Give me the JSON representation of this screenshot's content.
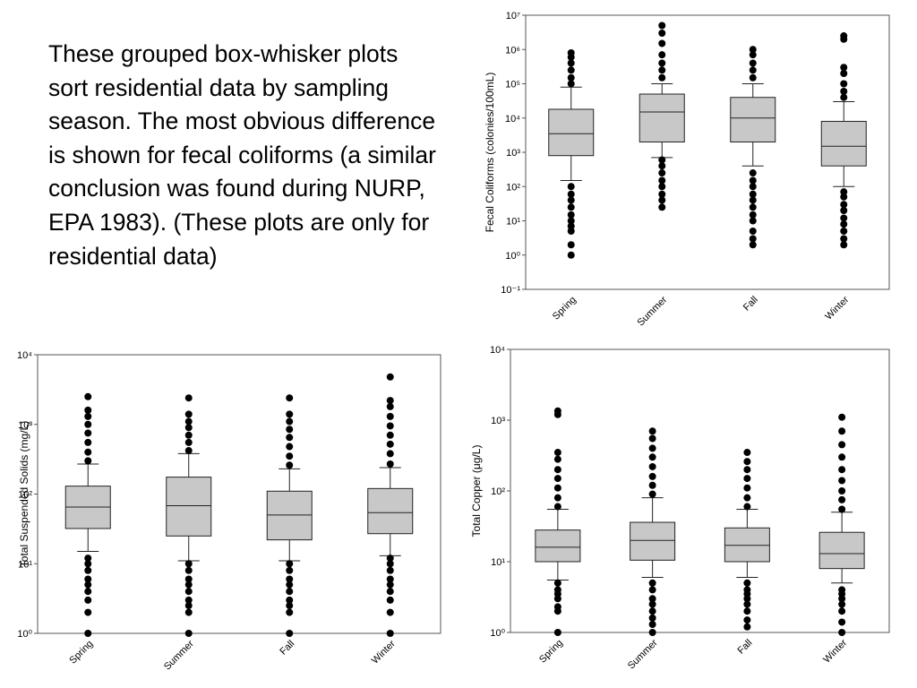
{
  "slide": {
    "body_text": "These grouped box-whisker plots sort residential data by sampling season. The most obvious difference is shown for fecal coliforms (a similar conclusion was found during NURP, EPA 1983). (These plots are only for residential data)"
  },
  "colors": {
    "box_fill": "#c8c8c8",
    "outline": "#222222",
    "outlier": "#000000"
  },
  "chart_data": [
    {
      "type": "box",
      "ylabel": "Fecal Coliforms (colonies/100mL)",
      "xlabel": "",
      "yscale": "log",
      "ylim": [
        0.1,
        10000000
      ],
      "ytick_exponents": [
        -1,
        0,
        1,
        2,
        3,
        4,
        5,
        6,
        7
      ],
      "categories": [
        "Spring",
        "Summer",
        "Fall",
        "Winter"
      ],
      "boxes": [
        {
          "q1": 800,
          "median": 3500,
          "q3": 18000,
          "whisker_low": 150,
          "whisker_high": 80000,
          "outliers": [
            1,
            2,
            5,
            7,
            10,
            15,
            25,
            40,
            60,
            100,
            100000,
            150000,
            250000,
            400000,
            600000,
            800000
          ]
        },
        {
          "q1": 2000,
          "median": 15000,
          "q3": 50000,
          "whisker_low": 700,
          "whisker_high": 100000,
          "outliers": [
            25,
            40,
            60,
            100,
            150,
            250,
            400,
            600,
            150000,
            250000,
            400000,
            700000,
            1500000,
            3000000,
            5000000
          ]
        },
        {
          "q1": 2000,
          "median": 10000,
          "q3": 40000,
          "whisker_low": 400,
          "whisker_high": 100000,
          "outliers": [
            2,
            3,
            5,
            10,
            15,
            25,
            40,
            60,
            100,
            150,
            250,
            150000,
            250000,
            400000,
            700000,
            1000000
          ]
        },
        {
          "q1": 400,
          "median": 1500,
          "q3": 8000,
          "whisker_low": 100,
          "whisker_high": 30000,
          "outliers": [
            2,
            3,
            5,
            8,
            12,
            20,
            30,
            50,
            70,
            40000,
            60000,
            100000,
            200000,
            300000,
            2000000,
            2500000
          ]
        }
      ]
    },
    {
      "type": "box",
      "ylabel": "Total Suspended Solids (mg/L)",
      "xlabel": "",
      "yscale": "log",
      "ylim": [
        1,
        10000
      ],
      "ytick_exponents": [
        0,
        1,
        2,
        3,
        4
      ],
      "categories": [
        "Spring",
        "Summer",
        "Fall",
        "Winter"
      ],
      "boxes": [
        {
          "q1": 32,
          "median": 65,
          "q3": 130,
          "whisker_low": 15,
          "whisker_high": 270,
          "outliers": [
            1,
            2,
            3,
            4,
            5,
            6,
            8,
            10,
            12,
            300,
            400,
            550,
            750,
            1000,
            1300,
            1600,
            2500
          ]
        },
        {
          "q1": 25,
          "median": 68,
          "q3": 175,
          "whisker_low": 11,
          "whisker_high": 380,
          "outliers": [
            1,
            2,
            2.5,
            3,
            4,
            5,
            6,
            8,
            10,
            420,
            550,
            700,
            900,
            1100,
            1400,
            2400
          ]
        },
        {
          "q1": 22,
          "median": 50,
          "q3": 110,
          "whisker_low": 11,
          "whisker_high": 230,
          "outliers": [
            1,
            2,
            2.5,
            3,
            4,
            5,
            6,
            8,
            10,
            260,
            350,
            480,
            650,
            850,
            1100,
            1400,
            2400
          ]
        },
        {
          "q1": 27,
          "median": 54,
          "q3": 120,
          "whisker_low": 13,
          "whisker_high": 240,
          "outliers": [
            1,
            2,
            3,
            4,
            5,
            6,
            8,
            10,
            12,
            270,
            380,
            520,
            700,
            950,
            1300,
            1800,
            2200,
            4800
          ]
        }
      ]
    },
    {
      "type": "box",
      "ylabel": "Total Copper (μg/L)",
      "xlabel": "",
      "yscale": "log",
      "ylim": [
        1,
        10000
      ],
      "ytick_exponents": [
        0,
        1,
        2,
        3,
        4
      ],
      "categories": [
        "Spring",
        "Summer",
        "Fall",
        "Winter"
      ],
      "boxes": [
        {
          "q1": 10,
          "median": 16,
          "q3": 28,
          "whisker_low": 5.5,
          "whisker_high": 55,
          "outliers": [
            1,
            2,
            2.3,
            3,
            3.5,
            4,
            5,
            60,
            80,
            110,
            150,
            200,
            280,
            350,
            1200,
            1350
          ]
        },
        {
          "q1": 10.5,
          "median": 20,
          "q3": 36,
          "whisker_low": 6,
          "whisker_high": 80,
          "outliers": [
            1,
            1.3,
            1.6,
            2,
            2.5,
            3,
            4,
            5,
            90,
            120,
            160,
            220,
            300,
            400,
            550,
            700
          ]
        },
        {
          "q1": 10,
          "median": 17,
          "q3": 30,
          "whisker_low": 6,
          "whisker_high": 55,
          "outliers": [
            1.2,
            1.5,
            2,
            2.5,
            3,
            3.5,
            4,
            5,
            60,
            80,
            110,
            150,
            200,
            260,
            350
          ]
        },
        {
          "q1": 8,
          "median": 13,
          "q3": 26,
          "whisker_low": 5,
          "whisker_high": 50,
          "outliers": [
            1,
            1.4,
            2,
            2.5,
            3,
            3.5,
            4,
            55,
            75,
            100,
            140,
            200,
            300,
            450,
            700,
            1100
          ]
        }
      ]
    }
  ]
}
